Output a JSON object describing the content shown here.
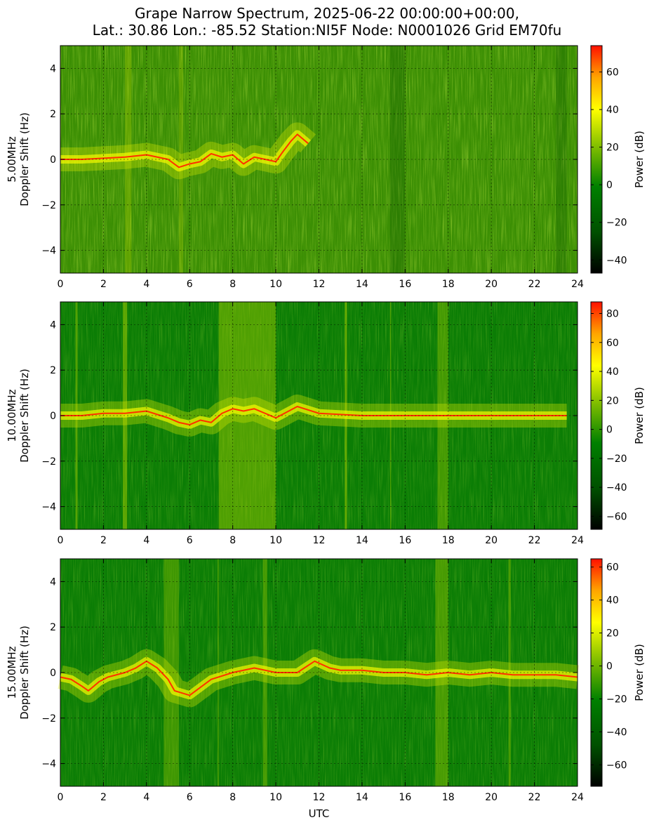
{
  "title": {
    "line1": "Grape Narrow Spectrum, 2025-06-22 00:00:00+00:00,",
    "line2": "Lat.: 30.86 Lon.: -85.52 Station:NI5F Node: N0001026 Grid EM70fu"
  },
  "xlabel": "UTC",
  "colors": {
    "colormap": [
      "#000000",
      "#006400",
      "#008000",
      "#6ab000",
      "#ffff00",
      "#ffa500",
      "#ff0000"
    ],
    "background_green": "#0b7d05"
  },
  "chart_data": [
    {
      "type": "heatmap",
      "ylabel_line1": "5.00MHz",
      "ylabel_line2": "Doppler Shift (Hz)",
      "xlim": [
        0,
        24
      ],
      "ylim": [
        -5,
        5
      ],
      "xticks": [
        "0",
        "2",
        "4",
        "6",
        "8",
        "10",
        "12",
        "14",
        "16",
        "18",
        "20",
        "22",
        "24"
      ],
      "yticks": [
        "−4",
        "−2",
        "0",
        "2",
        "4"
      ],
      "ytick_values": [
        -4,
        -2,
        0,
        2,
        4
      ],
      "grid": true,
      "colorbar": {
        "label": "Power (dB)",
        "range": [
          -47,
          74
        ],
        "ticks": [
          "−40",
          "−20",
          "0",
          "20",
          "40",
          "60"
        ],
        "tick_values": [
          -40,
          -20,
          0,
          20,
          40,
          60
        ]
      },
      "background_level": 0.42,
      "trace": {
        "x": [
          0,
          1,
          2,
          3,
          4,
          5,
          5.5,
          6,
          6.5,
          7,
          7.5,
          8,
          8.5,
          9,
          9.5,
          10,
          10.3,
          10.7,
          11,
          11.5
        ],
        "y": [
          0,
          0,
          0.05,
          0.1,
          0.2,
          0.0,
          -0.35,
          -0.2,
          -0.1,
          0.25,
          0.1,
          0.2,
          -0.2,
          0.1,
          0.0,
          -0.1,
          0.3,
          0.8,
          1.1,
          0.7
        ]
      }
    },
    {
      "type": "heatmap",
      "ylabel_line1": "10.00MHz",
      "ylabel_line2": "Doppler Shift (Hz)",
      "xlim": [
        0,
        24
      ],
      "ylim": [
        -5,
        5
      ],
      "xticks": [
        "0",
        "2",
        "4",
        "6",
        "8",
        "10",
        "12",
        "14",
        "16",
        "18",
        "20",
        "22",
        "24"
      ],
      "yticks": [
        "−4",
        "−2",
        "0",
        "2",
        "4"
      ],
      "ytick_values": [
        -4,
        -2,
        0,
        2,
        4
      ],
      "grid": true,
      "colorbar": {
        "label": "Power (dB)",
        "range": [
          -69,
          88
        ],
        "ticks": [
          "−60",
          "−40",
          "−20",
          "0",
          "20",
          "40",
          "60",
          "80"
        ],
        "tick_values": [
          -60,
          -40,
          -20,
          0,
          20,
          40,
          60,
          80
        ]
      },
      "background_level": 0.38,
      "trace": {
        "x": [
          0,
          1,
          2,
          3,
          4,
          5,
          5.5,
          6,
          6.5,
          7,
          7.5,
          8,
          8.5,
          9,
          9.5,
          10,
          11,
          12,
          13,
          14,
          15,
          16,
          18,
          20,
          22,
          23.5
        ],
        "y": [
          0,
          0,
          0.1,
          0.1,
          0.2,
          -0.1,
          -0.3,
          -0.4,
          -0.2,
          -0.3,
          0.1,
          0.3,
          0.2,
          0.3,
          0.1,
          -0.1,
          0.4,
          0.1,
          0.05,
          0.0,
          0.0,
          0.0,
          0.0,
          0.0,
          0.0,
          0.0
        ]
      }
    },
    {
      "type": "heatmap",
      "ylabel_line1": "15.00MHz",
      "ylabel_line2": "Doppler Shift (Hz)",
      "xlim": [
        0,
        24
      ],
      "ylim": [
        -5,
        5
      ],
      "xticks": [
        "0",
        "2",
        "4",
        "6",
        "8",
        "10",
        "12",
        "14",
        "16",
        "18",
        "20",
        "22",
        "24"
      ],
      "yticks": [
        "−4",
        "−2",
        "0",
        "2",
        "4"
      ],
      "ytick_values": [
        -4,
        -2,
        0,
        2,
        4
      ],
      "grid": true,
      "colorbar": {
        "label": "Power (dB)",
        "range": [
          -73,
          65
        ],
        "ticks": [
          "−60",
          "−40",
          "−20",
          "0",
          "20",
          "40",
          "60"
        ],
        "tick_values": [
          -60,
          -40,
          -20,
          0,
          20,
          40,
          60
        ]
      },
      "background_level": 0.36,
      "trace": {
        "x": [
          0,
          0.5,
          1,
          1.3,
          1.8,
          2.2,
          2.6,
          3,
          3.5,
          4,
          4.5,
          5,
          5.3,
          6,
          7,
          8,
          9,
          10,
          11,
          11.8,
          12.5,
          13,
          14,
          15,
          16,
          17,
          18,
          19,
          20,
          21,
          22,
          23,
          24
        ],
        "y": [
          -0.2,
          -0.3,
          -0.6,
          -0.8,
          -0.4,
          -0.2,
          -0.1,
          0.0,
          0.2,
          0.5,
          0.2,
          -0.3,
          -0.8,
          -1.0,
          -0.3,
          0.0,
          0.2,
          0.0,
          0.0,
          0.5,
          0.2,
          0.1,
          0.1,
          0.0,
          0.0,
          -0.1,
          0.0,
          -0.1,
          0.0,
          -0.1,
          -0.1,
          -0.1,
          -0.2
        ]
      }
    }
  ]
}
